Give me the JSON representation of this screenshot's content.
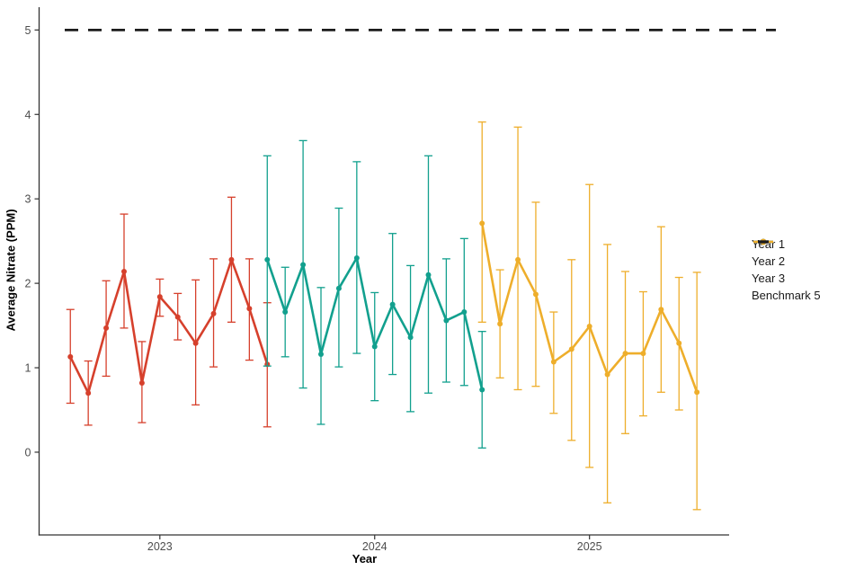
{
  "chart_data": {
    "type": "line",
    "title": "",
    "xlabel": "Year",
    "ylabel": "Average Nitrate (PPM)",
    "legend_position": "right",
    "grid": false,
    "error_bars": "vertical interval (lo,hi) with caps on every point",
    "x_ticks": [
      {
        "label": "2023",
        "value": 2023
      },
      {
        "label": "2024",
        "value": 2024
      },
      {
        "label": "2025",
        "value": 2025
      }
    ],
    "y_ticks": [
      {
        "label": "0",
        "value": 0
      },
      {
        "label": "1",
        "value": 1
      },
      {
        "label": "2",
        "value": 2
      },
      {
        "label": "3",
        "value": 3
      },
      {
        "label": "4",
        "value": 4
      },
      {
        "label": "5",
        "value": 5
      }
    ],
    "xlim_decimal_years": [
      2022.44,
      2025.65
    ],
    "ylim": [
      -0.98,
      5.27
    ],
    "benchmark": {
      "label": "Benchmark 5",
      "value": 5,
      "linetype": "dashed",
      "color": "#1c1c1c"
    },
    "series": [
      {
        "name": "Year 1",
        "color": "#d6402c",
        "points": [
          {
            "month": "2022-08",
            "y": 1.13,
            "lo": 0.58,
            "hi": 1.69
          },
          {
            "month": "2022-09",
            "y": 0.7,
            "lo": 0.32,
            "hi": 1.08
          },
          {
            "month": "2022-10",
            "y": 1.47,
            "lo": 0.9,
            "hi": 2.03
          },
          {
            "month": "2022-11",
            "y": 2.14,
            "lo": 1.47,
            "hi": 2.82
          },
          {
            "month": "2022-12",
            "y": 0.82,
            "lo": 0.35,
            "hi": 1.31
          },
          {
            "month": "2023-01",
            "y": 1.84,
            "lo": 1.61,
            "hi": 2.05
          },
          {
            "month": "2023-02",
            "y": 1.6,
            "lo": 1.33,
            "hi": 1.88
          },
          {
            "month": "2023-03",
            "y": 1.29,
            "lo": 0.56,
            "hi": 2.04
          },
          {
            "month": "2023-04",
            "y": 1.64,
            "lo": 1.01,
            "hi": 2.29
          },
          {
            "month": "2023-05",
            "y": 2.28,
            "lo": 1.54,
            "hi": 3.02
          },
          {
            "month": "2023-06",
            "y": 1.7,
            "lo": 1.09,
            "hi": 2.29
          },
          {
            "month": "2023-07",
            "y": 1.04,
            "lo": 0.3,
            "hi": 1.77
          }
        ]
      },
      {
        "name": "Year 2",
        "color": "#12a08e",
        "points": [
          {
            "month": "2023-07",
            "y": 2.28,
            "lo": 1.02,
            "hi": 3.51
          },
          {
            "month": "2023-08",
            "y": 1.66,
            "lo": 1.13,
            "hi": 2.19
          },
          {
            "month": "2023-09",
            "y": 2.22,
            "lo": 0.76,
            "hi": 3.69
          },
          {
            "month": "2023-10",
            "y": 1.16,
            "lo": 0.33,
            "hi": 1.95
          },
          {
            "month": "2023-11",
            "y": 1.94,
            "lo": 1.01,
            "hi": 2.89
          },
          {
            "month": "2023-12",
            "y": 2.3,
            "lo": 1.17,
            "hi": 3.44
          },
          {
            "month": "2024-01",
            "y": 1.25,
            "lo": 0.61,
            "hi": 1.89
          },
          {
            "month": "2024-02",
            "y": 1.75,
            "lo": 0.92,
            "hi": 2.59
          },
          {
            "month": "2024-03",
            "y": 1.36,
            "lo": 0.48,
            "hi": 2.21
          },
          {
            "month": "2024-04",
            "y": 2.1,
            "lo": 0.7,
            "hi": 3.51
          },
          {
            "month": "2024-05",
            "y": 1.56,
            "lo": 0.83,
            "hi": 2.29
          },
          {
            "month": "2024-06",
            "y": 1.66,
            "lo": 0.79,
            "hi": 2.53
          },
          {
            "month": "2024-07",
            "y": 0.74,
            "lo": 0.05,
            "hi": 1.43
          }
        ]
      },
      {
        "name": "Year 3",
        "color": "#eeae2b",
        "points": [
          {
            "month": "2024-07",
            "y": 2.71,
            "lo": 1.54,
            "hi": 3.91
          },
          {
            "month": "2024-08",
            "y": 1.52,
            "lo": 0.88,
            "hi": 2.16
          },
          {
            "month": "2024-09",
            "y": 2.28,
            "lo": 0.74,
            "hi": 3.85
          },
          {
            "month": "2024-10",
            "y": 1.87,
            "lo": 0.78,
            "hi": 2.96
          },
          {
            "month": "2024-11",
            "y": 1.07,
            "lo": 0.46,
            "hi": 1.66
          },
          {
            "month": "2024-12",
            "y": 1.22,
            "lo": 0.14,
            "hi": 2.28
          },
          {
            "month": "2025-01",
            "y": 1.49,
            "lo": -0.18,
            "hi": 3.17
          },
          {
            "month": "2025-02",
            "y": 0.92,
            "lo": -0.6,
            "hi": 2.46
          },
          {
            "month": "2025-03",
            "y": 1.17,
            "lo": 0.22,
            "hi": 2.14
          },
          {
            "month": "2025-04",
            "y": 1.17,
            "lo": 0.43,
            "hi": 1.9
          },
          {
            "month": "2025-05",
            "y": 1.69,
            "lo": 0.71,
            "hi": 2.67
          },
          {
            "month": "2025-06",
            "y": 1.29,
            "lo": 0.5,
            "hi": 2.07
          },
          {
            "month": "2025-07",
            "y": 0.71,
            "lo": -0.68,
            "hi": 2.13
          }
        ]
      }
    ],
    "colors": {
      "axis_line": "#333333",
      "tick_label": "#4d4d4d",
      "axis_title": "#000000",
      "background": "#ffffff"
    }
  }
}
